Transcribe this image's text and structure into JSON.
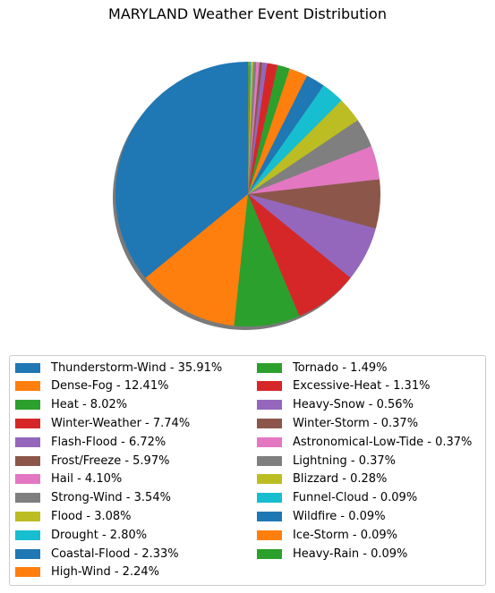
{
  "chart_data": {
    "type": "pie",
    "title": "MARYLAND Weather Event Distribution",
    "slices": [
      {
        "label": "Thunderstorm-Wind - 35.91%",
        "value": 35.91,
        "color": "#1f77b4"
      },
      {
        "label": "Dense-Fog - 12.41%",
        "value": 12.41,
        "color": "#ff7f0e"
      },
      {
        "label": "Heat - 8.02%",
        "value": 8.02,
        "color": "#2ca02c"
      },
      {
        "label": "Winter-Weather - 7.74%",
        "value": 7.74,
        "color": "#d62728"
      },
      {
        "label": "Flash-Flood - 6.72%",
        "value": 6.72,
        "color": "#9467bd"
      },
      {
        "label": "Frost/Freeze - 5.97%",
        "value": 5.97,
        "color": "#8c564b"
      },
      {
        "label": "Hail - 4.10%",
        "value": 4.1,
        "color": "#e377c2"
      },
      {
        "label": "Strong-Wind - 3.54%",
        "value": 3.54,
        "color": "#7f7f7f"
      },
      {
        "label": "Flood - 3.08%",
        "value": 3.08,
        "color": "#bcbd22"
      },
      {
        "label": "Drought - 2.80%",
        "value": 2.8,
        "color": "#17becf"
      },
      {
        "label": "Coastal-Flood - 2.33%",
        "value": 2.33,
        "color": "#1f77b4"
      },
      {
        "label": "High-Wind - 2.24%",
        "value": 2.24,
        "color": "#ff7f0e"
      },
      {
        "label": "Tornado - 1.49%",
        "value": 1.49,
        "color": "#2ca02c"
      },
      {
        "label": "Excessive-Heat - 1.31%",
        "value": 1.31,
        "color": "#d62728"
      },
      {
        "label": "Heavy-Snow - 0.56%",
        "value": 0.56,
        "color": "#9467bd"
      },
      {
        "label": "Winter-Storm - 0.37%",
        "value": 0.37,
        "color": "#8c564b"
      },
      {
        "label": "Astronomical-Low-Tide - 0.37%",
        "value": 0.37,
        "color": "#e377c2"
      },
      {
        "label": "Lightning - 0.37%",
        "value": 0.37,
        "color": "#7f7f7f"
      },
      {
        "label": "Blizzard - 0.28%",
        "value": 0.28,
        "color": "#bcbd22"
      },
      {
        "label": "Funnel-Cloud - 0.09%",
        "value": 0.09,
        "color": "#17becf"
      },
      {
        "label": "Wildfire - 0.09%",
        "value": 0.09,
        "color": "#1f77b4"
      },
      {
        "label": "Ice-Storm - 0.09%",
        "value": 0.09,
        "color": "#ff7f0e"
      },
      {
        "label": "Heavy-Rain - 0.09%",
        "value": 0.09,
        "color": "#2ca02c"
      }
    ],
    "legend_placement": "bottom",
    "legend_columns": 2,
    "shadow": true
  }
}
